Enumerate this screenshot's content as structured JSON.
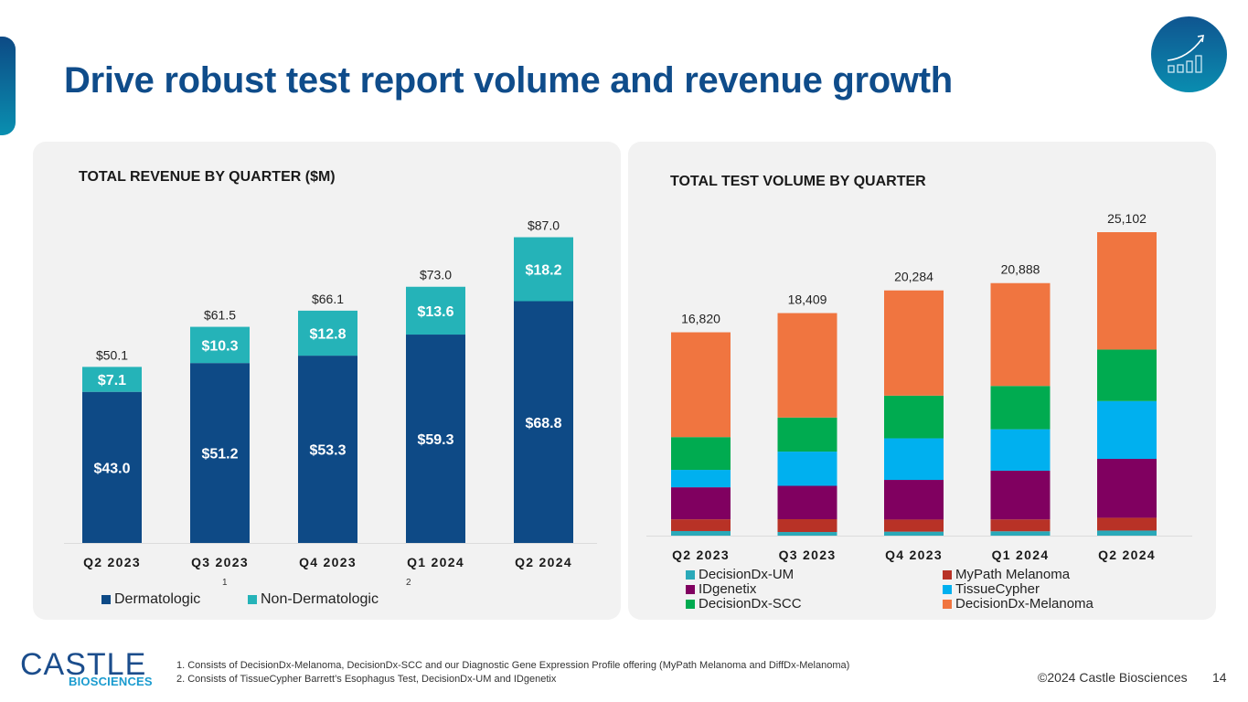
{
  "slide": {
    "title": "Drive robust test report volume and revenue growth",
    "icon": "growth-chart-icon",
    "footnotes": [
      "1. Consists of DecisionDx-Melanoma, DecisionDx-SCC and our Diagnostic Gene Expression Profile offering (MyPath Melanoma and DiffDx-Melanoma)",
      "2. Consists of TissueCypher Barrett’s Esophagus Test, DecisionDx-UM and IDgenetix"
    ],
    "logo": {
      "main": "CASTLE",
      "sub": "BIOSCIENCES"
    },
    "copyright": "©2024 Castle Biosciences",
    "page_number": "14"
  },
  "colors": {
    "title": "#0f4c8a",
    "dermatologic": "#0e4a86",
    "non_dermatologic": "#25b3b8",
    "decisiondx_um": "#2aa9b9",
    "mypath_melanoma": "#b83226",
    "idgenetix": "#800060",
    "tissuecypher": "#00b0ef",
    "decisiondx_scc": "#00ab50",
    "decisiondx_melanoma": "#f07540"
  },
  "chart_data": [
    {
      "type": "bar",
      "stacked": true,
      "title": "TOTAL REVENUE BY QUARTER ($M)",
      "categories": [
        "Q2 2023",
        "Q3 2023",
        "Q4 2023",
        "Q1 2024",
        "Q2 2024"
      ],
      "series": [
        {
          "name": "Dermatologic",
          "superscript": "1",
          "color": "#0e4a86",
          "values": [
            43.0,
            51.2,
            53.3,
            59.3,
            68.8
          ],
          "labels": [
            "$43.0",
            "$51.2",
            "$53.3",
            "$59.3",
            "$68.8"
          ]
        },
        {
          "name": "Non-Dermatologic",
          "superscript": "2",
          "color": "#25b3b8",
          "values": [
            7.1,
            10.3,
            12.8,
            13.6,
            18.2
          ],
          "labels": [
            "$7.1",
            "$10.3",
            "$12.8",
            "$13.6",
            "$18.2"
          ]
        }
      ],
      "totals": [
        50.1,
        61.5,
        66.1,
        73.0,
        87.0
      ],
      "total_labels": [
        "$50.1",
        "$61.5",
        "$66.1",
        "$73.0",
        "$87.0"
      ],
      "xlabel": "",
      "ylabel": "",
      "ylim": [
        0,
        90
      ],
      "grid": false,
      "legend": "bottom"
    },
    {
      "type": "bar",
      "stacked": true,
      "title": "TOTAL TEST VOLUME BY QUARTER",
      "categories": [
        "Q2 2023",
        "Q3 2023",
        "Q4 2023",
        "Q1 2024",
        "Q2 2024"
      ],
      "series": [
        {
          "name": "DecisionDx-UM",
          "color": "#2aa9b9",
          "values": [
            380,
            300,
            330,
            360,
            420
          ]
        },
        {
          "name": "MyPath Melanoma",
          "color": "#b83226",
          "values": [
            970,
            1060,
            1000,
            980,
            1060
          ]
        },
        {
          "name": "IDgenetix",
          "color": "#800060",
          "values": [
            2650,
            2760,
            3280,
            4030,
            4870
          ]
        },
        {
          "name": "TissueCypher",
          "color": "#00b0ef",
          "values": [
            1440,
            2830,
            3440,
            3430,
            4780
          ]
        },
        {
          "name": "DecisionDx-SCC",
          "color": "#00ab50",
          "values": [
            2710,
            2820,
            3530,
            3580,
            4260
          ]
        },
        {
          "name": "DecisionDx-Melanoma",
          "color": "#f07540",
          "values": [
            8670,
            8639,
            8704,
            8508,
            9712
          ]
        }
      ],
      "totals": [
        16820,
        18409,
        20284,
        20888,
        25102
      ],
      "total_labels": [
        "16,820",
        "18,409",
        "20,284",
        "20,888",
        "25,102"
      ],
      "legend_order": [
        "DecisionDx-UM",
        "MyPath Melanoma",
        "IDgenetix",
        "TissueCypher",
        "DecisionDx-SCC",
        "DecisionDx-Melanoma"
      ],
      "xlabel": "",
      "ylabel": "",
      "ylim": [
        0,
        26000
      ],
      "grid": false,
      "legend": "bottom"
    }
  ]
}
